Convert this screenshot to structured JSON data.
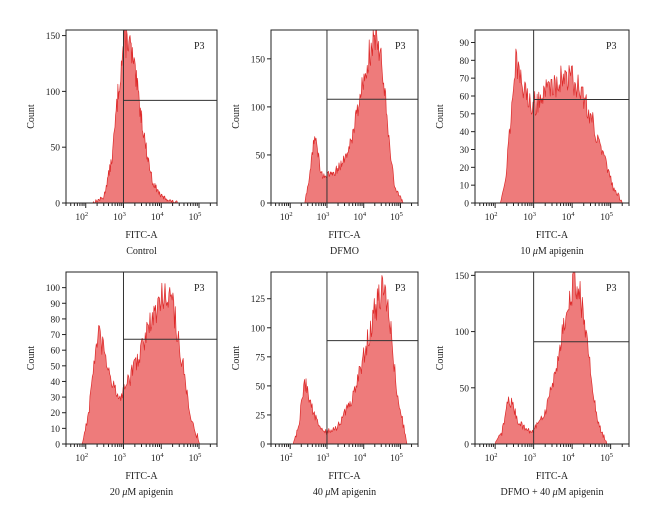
{
  "chart_data": [
    {
      "type": "area",
      "title": "Control",
      "gate_label": "P3",
      "xlabel": "FITC-A",
      "ylabel": "Count",
      "x_scale": "log",
      "xlim": [
        30,
        300000
      ],
      "ylim": [
        0,
        155
      ],
      "yticks": [
        0,
        50,
        100,
        150
      ],
      "gate": {
        "x": 1000,
        "y": 92
      },
      "x_tick_labels": [
        "10^2",
        "10^3",
        "10^4",
        "10^5"
      ],
      "series": [
        {
          "values": [
            [
              150,
              0
            ],
            [
              300,
              5
            ],
            [
              500,
              40
            ],
            [
              700,
              95
            ],
            [
              1000,
              140
            ],
            [
              1300,
              150
            ],
            [
              1700,
              130
            ],
            [
              2500,
              95
            ],
            [
              4000,
              48
            ],
            [
              6000,
              18
            ],
            [
              10000,
              6
            ],
            [
              20000,
              1
            ],
            [
              30000,
              0
            ]
          ]
        }
      ]
    },
    {
      "type": "area",
      "title": "DFMO",
      "gate_label": "P3",
      "xlabel": "FITC-A",
      "ylabel": "Count",
      "x_scale": "log",
      "xlim": [
        30,
        300000
      ],
      "ylim": [
        0,
        180
      ],
      "yticks": [
        0,
        50,
        100,
        150
      ],
      "gate": {
        "x": 1000,
        "y": 108
      },
      "x_tick_labels": [
        "10^2",
        "10^3",
        "10^4",
        "10^5"
      ],
      "series": [
        {
          "values": [
            [
              250,
              0
            ],
            [
              330,
              25
            ],
            [
              450,
              70
            ],
            [
              550,
              55
            ],
            [
              700,
              30
            ],
            [
              1000,
              28
            ],
            [
              2000,
              35
            ],
            [
              4000,
              55
            ],
            [
              7000,
              100
            ],
            [
              12000,
              145
            ],
            [
              20000,
              175
            ],
            [
              30000,
              160
            ],
            [
              45000,
              80
            ],
            [
              70000,
              15
            ],
            [
              120000,
              0
            ]
          ]
        }
      ]
    },
    {
      "type": "area",
      "title": "10 μM apigenin",
      "gate_label": "P3",
      "xlabel": "FITC-A",
      "ylabel": "Count",
      "x_scale": "log",
      "xlim": [
        30,
        300000
      ],
      "ylim": [
        0,
        97
      ],
      "yticks": [
        0,
        10,
        20,
        30,
        40,
        50,
        60,
        70,
        80,
        90
      ],
      "gate": {
        "x": 1000,
        "y": 58
      },
      "x_tick_labels": [
        "10^2",
        "10^3",
        "10^4",
        "10^5"
      ],
      "series": [
        {
          "values": [
            [
              130,
              0
            ],
            [
              180,
              10
            ],
            [
              250,
              45
            ],
            [
              330,
              80
            ],
            [
              420,
              70
            ],
            [
              600,
              62
            ],
            [
              1000,
              55
            ],
            [
              2000,
              62
            ],
            [
              4000,
              68
            ],
            [
              8000,
              72
            ],
            [
              15000,
              65
            ],
            [
              30000,
              50
            ],
            [
              60000,
              28
            ],
            [
              120000,
              8
            ],
            [
              200000,
              0
            ]
          ]
        }
      ]
    },
    {
      "type": "area",
      "title": "20 μM apigenin",
      "gate_label": "P3",
      "xlabel": "FITC-A",
      "ylabel": "Count",
      "x_scale": "log",
      "xlim": [
        30,
        300000
      ],
      "ylim": [
        0,
        110
      ],
      "yticks": [
        0,
        10,
        20,
        30,
        40,
        50,
        60,
        70,
        80,
        90,
        100
      ],
      "gate": {
        "x": 1000,
        "y": 67
      },
      "x_tick_labels": [
        "10^2",
        "10^3",
        "10^4",
        "10^5"
      ],
      "series": [
        {
          "values": [
            [
              80,
              0
            ],
            [
              120,
              20
            ],
            [
              170,
              55
            ],
            [
              230,
              70
            ],
            [
              300,
              58
            ],
            [
              450,
              45
            ],
            [
              700,
              28
            ],
            [
              1000,
              33
            ],
            [
              2000,
              50
            ],
            [
              4000,
              70
            ],
            [
              8000,
              88
            ],
            [
              14000,
              100
            ],
            [
              20000,
              90
            ],
            [
              35000,
              55
            ],
            [
              60000,
              15
            ],
            [
              110000,
              0
            ]
          ]
        }
      ]
    },
    {
      "type": "area",
      "title": "40 μM apigenin",
      "gate_label": "P3",
      "xlabel": "FITC-A",
      "ylabel": "Count",
      "x_scale": "log",
      "xlim": [
        30,
        300000
      ],
      "ylim": [
        0,
        148
      ],
      "yticks": [
        0,
        25,
        50,
        75,
        100,
        125
      ],
      "gate": {
        "x": 1000,
        "y": 89
      },
      "x_tick_labels": [
        "10^2",
        "10^3",
        "10^4",
        "10^5"
      ],
      "series": [
        {
          "values": [
            [
              120,
              0
            ],
            [
              170,
              15
            ],
            [
              240,
              55
            ],
            [
              320,
              42
            ],
            [
              450,
              25
            ],
            [
              700,
              12
            ],
            [
              1000,
              10
            ],
            [
              2000,
              15
            ],
            [
              5000,
              40
            ],
            [
              10000,
              75
            ],
            [
              20000,
              115
            ],
            [
              35000,
              135
            ],
            [
              50000,
              110
            ],
            [
              80000,
              45
            ],
            [
              150000,
              0
            ]
          ]
        }
      ]
    },
    {
      "type": "area",
      "title": "DFMO + 40 μM apigenin",
      "gate_label": "P3",
      "xlabel": "FITC-A",
      "ylabel": "Count",
      "x_scale": "log",
      "xlim": [
        30,
        300000
      ],
      "ylim": [
        0,
        153
      ],
      "yticks": [
        0,
        50,
        100,
        150
      ],
      "gate": {
        "x": 1000,
        "y": 91
      },
      "x_tick_labels": [
        "10^2",
        "10^3",
        "10^4",
        "10^5"
      ],
      "series": [
        {
          "values": [
            [
              100,
              0
            ],
            [
              150,
              10
            ],
            [
              220,
              40
            ],
            [
              280,
              35
            ],
            [
              400,
              20
            ],
            [
              700,
              12
            ],
            [
              1000,
              12
            ],
            [
              2000,
              28
            ],
            [
              4000,
              70
            ],
            [
              7000,
              118
            ],
            [
              11000,
              143
            ],
            [
              16000,
              135
            ],
            [
              25000,
              85
            ],
            [
              45000,
              20
            ],
            [
              80000,
              0
            ]
          ]
        }
      ]
    }
  ]
}
